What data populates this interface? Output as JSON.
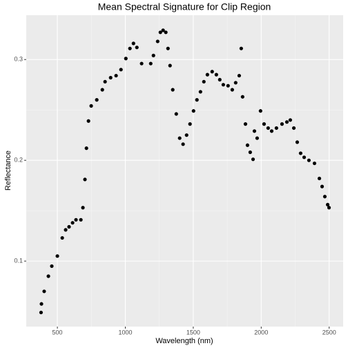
{
  "chart_data": {
    "type": "scatter",
    "title": "Mean Spectral Signature for Clip Region",
    "x_label": "Wavelength (nm)",
    "y_label": "Reflectance",
    "xlim": [
      271,
      2603
    ],
    "ylim": [
      0.035,
      0.344
    ],
    "xticks": [
      500,
      1000,
      1500,
      2000,
      2500
    ],
    "yticks": [
      0.1,
      0.2,
      0.3
    ],
    "grid": true,
    "color": "#000000",
    "x": [
      380,
      383,
      403,
      434,
      459,
      500,
      536,
      561,
      586,
      612,
      637,
      673,
      688,
      703,
      714,
      729,
      749,
      790,
      831,
      851,
      892,
      932,
      968,
      1004,
      1034,
      1060,
      1085,
      1120,
      1187,
      1207,
      1238,
      1258,
      1278,
      1298,
      1314,
      1329,
      1349,
      1375,
      1400,
      1425,
      1451,
      1476,
      1502,
      1527,
      1553,
      1578,
      1604,
      1639,
      1670,
      1695,
      1721,
      1756,
      1787,
      1812,
      1838,
      1853,
      1863,
      1884,
      1899,
      1919,
      1940,
      1950,
      1970,
      1995,
      2021,
      2051,
      2077,
      2112,
      2153,
      2189,
      2214,
      2240,
      2265,
      2290,
      2316,
      2351,
      2392,
      2428,
      2448,
      2468,
      2489,
      2499
    ],
    "values": [
      0.049,
      0.0575,
      0.07,
      0.085,
      0.095,
      0.105,
      0.123,
      0.131,
      0.134,
      0.138,
      0.141,
      0.141,
      0.153,
      0.181,
      0.212,
      0.239,
      0.254,
      0.26,
      0.27,
      0.278,
      0.282,
      0.284,
      0.29,
      0.301,
      0.311,
      0.316,
      0.312,
      0.296,
      0.296,
      0.304,
      0.318,
      0.327,
      0.329,
      0.327,
      0.311,
      0.294,
      0.27,
      0.246,
      0.222,
      0.216,
      0.225,
      0.236,
      0.249,
      0.26,
      0.268,
      0.278,
      0.285,
      0.288,
      0.285,
      0.28,
      0.275,
      0.274,
      0.27,
      0.277,
      0.284,
      0.311,
      0.263,
      0.236,
      0.215,
      0.208,
      0.201,
      0.229,
      0.222,
      0.249,
      0.236,
      0.232,
      0.229,
      0.232,
      0.236,
      0.238,
      0.24,
      0.232,
      0.218,
      0.207,
      0.203,
      0.2,
      0.197,
      0.182,
      0.174,
      0.164,
      0.156,
      0.153
    ]
  }
}
